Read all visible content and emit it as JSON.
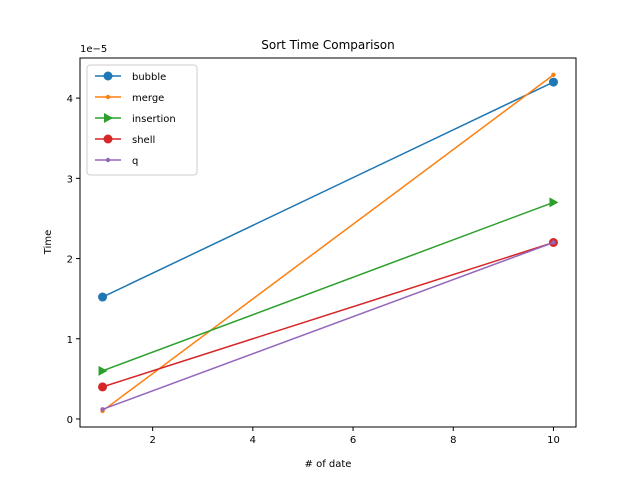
{
  "chart_data": {
    "type": "line",
    "title": "Sort Time Comparison",
    "xlabel": "# of date",
    "ylabel": "Time",
    "y_offset_label": "1e−5",
    "x": [
      1,
      10
    ],
    "xlim": [
      0.55,
      10.45
    ],
    "ylim": [
      -0.1,
      4.5
    ],
    "xticks": [
      2,
      4,
      6,
      8,
      10
    ],
    "yticks": [
      0,
      1,
      2,
      3,
      4
    ],
    "grid": false,
    "legend_position": "top-left",
    "series": [
      {
        "name": "bubble",
        "values": [
          1.52,
          4.2
        ],
        "color": "#1f77b4",
        "marker": "circle"
      },
      {
        "name": "merge",
        "values": [
          0.1,
          4.29
        ],
        "color": "#ff7f0e",
        "marker": "point"
      },
      {
        "name": "insertion",
        "values": [
          0.6,
          2.7
        ],
        "color": "#2ca02c",
        "marker": "triangle-right"
      },
      {
        "name": "shell",
        "values": [
          0.4,
          2.2
        ],
        "color": "#d62728",
        "marker": "circle"
      },
      {
        "name": "q",
        "values": [
          0.12,
          2.2
        ],
        "color": "#9467bd",
        "marker": "point"
      }
    ]
  }
}
